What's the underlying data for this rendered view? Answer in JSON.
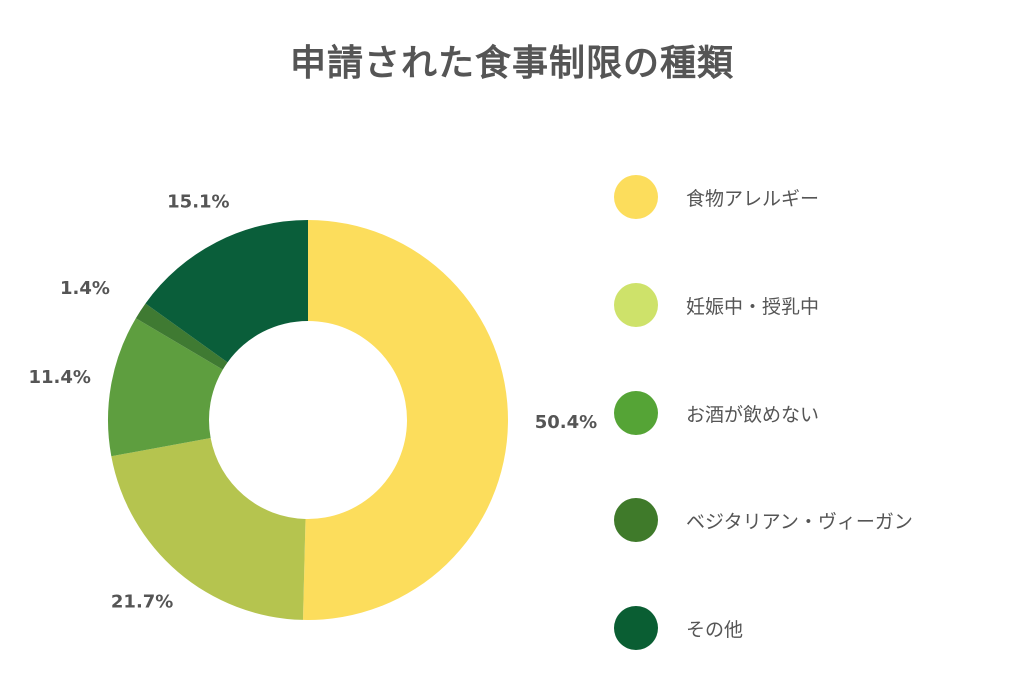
{
  "chart_data": {
    "type": "pie",
    "title": "申請された食事制限の種類",
    "categories": [
      "食物アレルギー",
      "妊娠中・授乳中",
      "お酒が飲めない",
      "ベジタリアン・ヴィーガン",
      "その他"
    ],
    "values": [
      50.4,
      21.7,
      11.4,
      1.4,
      15.1
    ],
    "data_labels": [
      "50.4%",
      "21.7%",
      "11.4%",
      "1.4%",
      "15.1%"
    ],
    "slice_colors": [
      "#FCDD5C",
      "#B5C44F",
      "#5E9E3F",
      "#3F7A32",
      "#0A5E3A"
    ],
    "legend_colors": [
      "#FCDD5C",
      "#CEE26A",
      "#55A436",
      "#3F7A2A",
      "#0A5E33"
    ],
    "donut": true,
    "legend_position": "right"
  }
}
